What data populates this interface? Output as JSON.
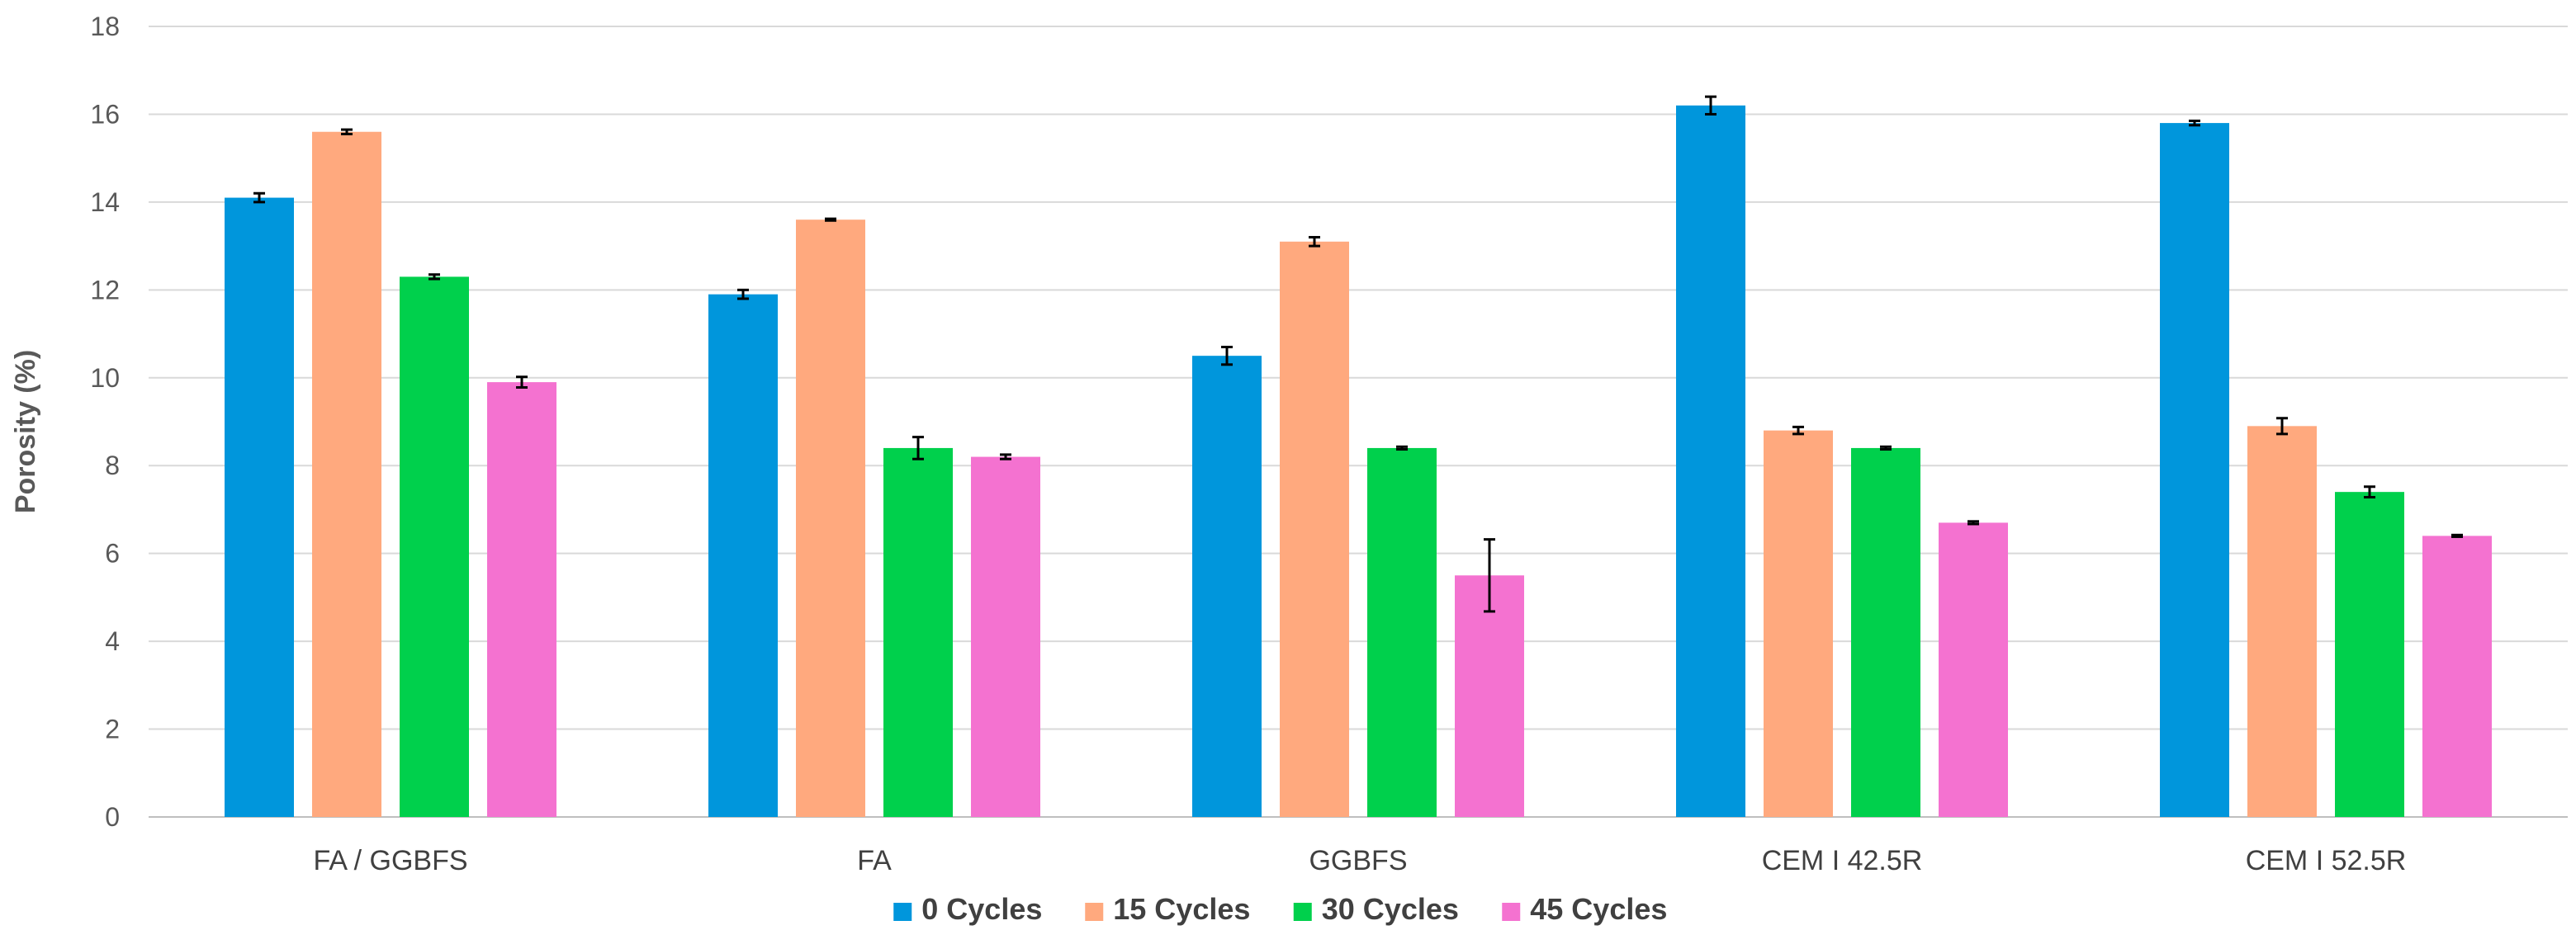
{
  "chart_data": {
    "type": "bar",
    "title": "",
    "xlabel": "",
    "ylabel": "Porosity (%)",
    "ylim": [
      0,
      18
    ],
    "yticks": [
      0,
      2,
      4,
      6,
      8,
      10,
      12,
      14,
      16,
      18
    ],
    "grid": true,
    "legend_position": "bottom",
    "categories": [
      "FA / GGBFS",
      "FA",
      "GGBFS",
      "CEM I 42.5R",
      "CEM I 52.5R"
    ],
    "series": [
      {
        "name": "0 Cycles",
        "color": "#0096DC",
        "values": [
          14.1,
          11.9,
          10.5,
          16.2,
          15.8
        ],
        "errors": [
          0.1,
          0.1,
          0.2,
          0.2,
          0.05
        ]
      },
      {
        "name": "15 Cycles",
        "color": "#FFA97E",
        "values": [
          15.6,
          13.6,
          13.1,
          8.8,
          8.9
        ],
        "errors": [
          0.05,
          0.02,
          0.1,
          0.08,
          0.18
        ]
      },
      {
        "name": "30 Cycles",
        "color": "#00D04C",
        "values": [
          12.3,
          8.4,
          8.4,
          8.4,
          7.4
        ],
        "errors": [
          0.05,
          0.25,
          0.03,
          0.03,
          0.12
        ]
      },
      {
        "name": "45 Cycles",
        "color": "#F472D0",
        "values": [
          9.9,
          8.2,
          5.5,
          6.7,
          6.4
        ],
        "errors": [
          0.12,
          0.05,
          0.82,
          0.03,
          0.02
        ]
      }
    ]
  }
}
